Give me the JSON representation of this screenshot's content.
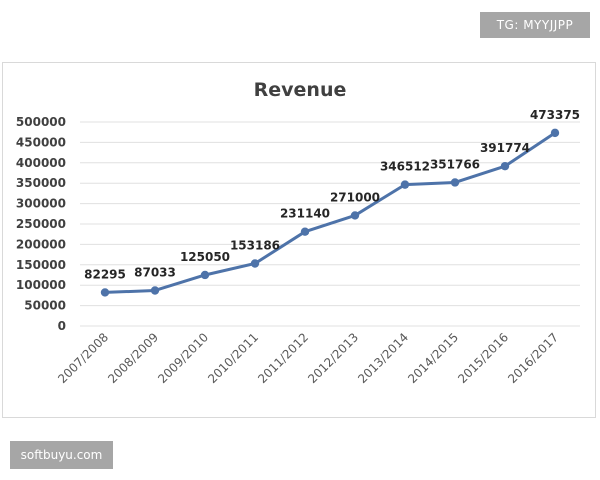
{
  "watermarks": {
    "top_right": "TG: MYYJJPP",
    "bottom_left": "softbuyu.com"
  },
  "chart_data": {
    "type": "line",
    "title": "Revenue",
    "xlabel": "",
    "ylabel": "",
    "categories": [
      "2007/2008",
      "2008/2009",
      "2009/2010",
      "2010/2011",
      "2011/2012",
      "2012/2013",
      "2013/2014",
      "2014/2015",
      "2015/2016",
      "2016/2017"
    ],
    "series": [
      {
        "values": [
          82295,
          87033,
          125050,
          153186,
          231140,
          271000,
          346512,
          351766,
          391774,
          473375
        ]
      }
    ],
    "data_labels": [
      "82295",
      "87033",
      "125050",
      "153186",
      "231140",
      "271000",
      "346512",
      "351766",
      "391774",
      "473375"
    ],
    "ylim": [
      0,
      500000
    ],
    "yticks": [
      0,
      50000,
      100000,
      150000,
      200000,
      250000,
      300000,
      350000,
      400000,
      450000,
      500000
    ],
    "ytick_labels": [
      "0",
      "50000",
      "100000",
      "150000",
      "200000",
      "250000",
      "300000",
      "350000",
      "400000",
      "450000",
      "500000"
    ],
    "grid": true,
    "legend": "none",
    "colors": {
      "series": "#4e73a9",
      "grid": "#e0e0e0"
    }
  }
}
